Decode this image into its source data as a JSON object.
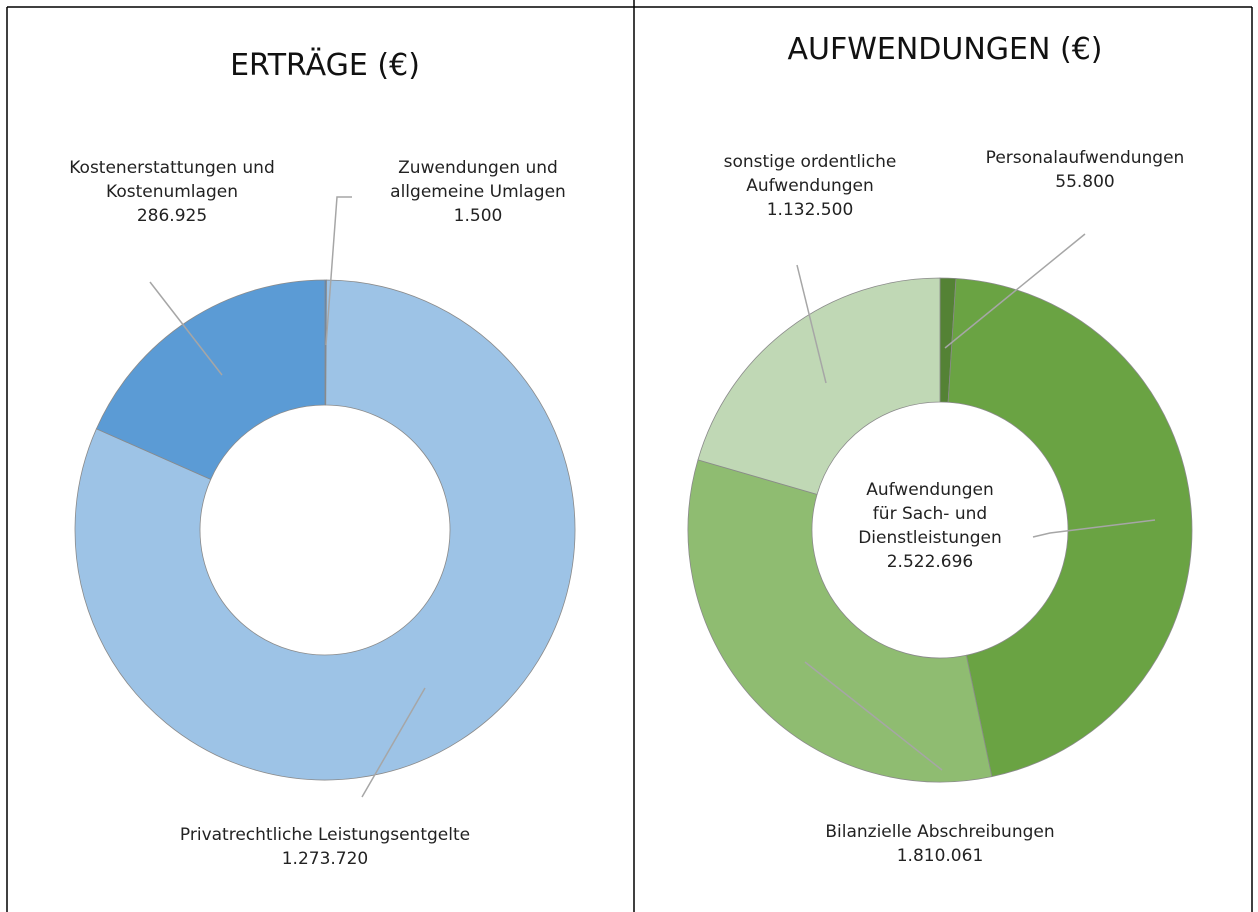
{
  "chart_data": [
    {
      "type": "donut",
      "title": "ERTRÄGE (€)",
      "categories": [
        "Zuwendungen und\nallgemeine Umlagen",
        "Privatrechtliche Leistungsentgelte",
        "Kostenerstattungen und\nKostenumlagen"
      ],
      "values": [
        1500,
        1273720,
        286925
      ],
      "value_labels": [
        "1.500",
        "1.273.720",
        "286.925"
      ],
      "colors": [
        "#4a86c5",
        "#9dc3e6",
        "#5b9bd5"
      ]
    },
    {
      "type": "donut",
      "title": "AUFWENDUNGEN (€)",
      "categories": [
        "Personalaufwendungen",
        "Aufwendungen\nfür Sach- und\nDienstleistungen",
        "Bilanzielle Abschreibungen",
        "sonstige ordentliche\nAufwendungen"
      ],
      "values": [
        55800,
        2522696,
        1810061,
        1132500
      ],
      "value_labels": [
        "55.800",
        "2.522.696",
        "1.810.061",
        "1.132.500"
      ],
      "colors": [
        "#548235",
        "#6aa343",
        "#8fbc71",
        "#c0d8b5"
      ]
    }
  ]
}
